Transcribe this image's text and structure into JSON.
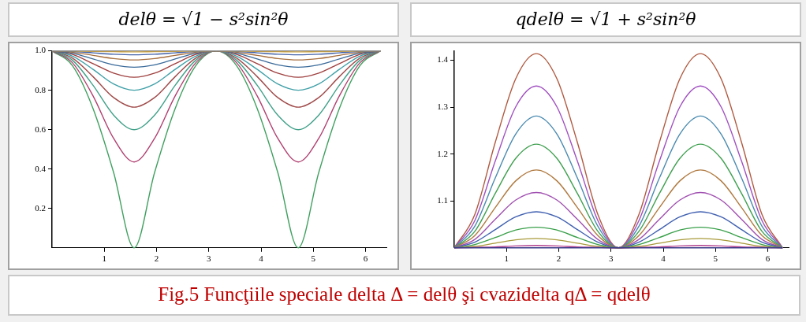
{
  "chart_data": [
    {
      "type": "line",
      "title": "delθ = √1 − s²sin²θ",
      "x": [
        0,
        0.393,
        0.785,
        1.178,
        1.571,
        1.963,
        2.356,
        2.749,
        3.142,
        3.534,
        3.927,
        4.32,
        4.712,
        5.105,
        5.498,
        5.89,
        6.283
      ],
      "xlim": [
        0,
        6.4
      ],
      "xticks": [
        1,
        2,
        3,
        4,
        5,
        6
      ],
      "ylim": [
        0,
        1.0
      ],
      "yticks": [
        0.2,
        0.4,
        0.6,
        0.8,
        {
          "value": 1,
          "label": "1.0"
        }
      ],
      "series": [
        {
          "color": "#8a8a8a",
          "values": [
            1,
            1,
            1,
            1,
            1,
            1,
            1,
            1,
            1,
            1,
            1,
            1,
            1,
            1,
            1,
            1,
            1
          ]
        },
        {
          "color": "#d0a030",
          "values": [
            1,
            0.999,
            0.997,
            0.996,
            0.995,
            0.996,
            0.997,
            0.999,
            1,
            0.999,
            0.997,
            0.996,
            0.995,
            0.996,
            0.997,
            0.999,
            1
          ]
        },
        {
          "color": "#4060a8",
          "values": [
            1,
            0.997,
            0.99,
            0.983,
            0.98,
            0.983,
            0.99,
            0.997,
            1,
            0.997,
            0.99,
            0.983,
            0.98,
            0.983,
            0.99,
            0.997,
            1
          ]
        },
        {
          "color": "#a87040",
          "values": [
            1,
            0.993,
            0.977,
            0.961,
            0.954,
            0.961,
            0.977,
            0.993,
            1,
            0.993,
            0.977,
            0.961,
            0.954,
            0.961,
            0.977,
            0.993,
            1
          ]
        },
        {
          "color": "#3a6a9a",
          "values": [
            1,
            0.988,
            0.959,
            0.929,
            0.917,
            0.929,
            0.959,
            0.988,
            1,
            0.988,
            0.959,
            0.929,
            0.917,
            0.929,
            0.959,
            0.988,
            1
          ]
        },
        {
          "color": "#a04040",
          "values": [
            1,
            0.982,
            0.935,
            0.887,
            0.866,
            0.887,
            0.935,
            0.982,
            1,
            0.982,
            0.935,
            0.887,
            0.866,
            0.887,
            0.935,
            0.982,
            1
          ]
        },
        {
          "color": "#40a0a8",
          "values": [
            1,
            0.973,
            0.906,
            0.832,
            0.8,
            0.832,
            0.906,
            0.973,
            1,
            0.973,
            0.906,
            0.832,
            0.8,
            0.832,
            0.906,
            0.973,
            1
          ]
        },
        {
          "color": "#a04a4a",
          "values": [
            1,
            0.963,
            0.869,
            0.763,
            0.714,
            0.763,
            0.869,
            0.963,
            1,
            0.963,
            0.869,
            0.763,
            0.714,
            0.763,
            0.869,
            0.963,
            1
          ]
        },
        {
          "color": "#40a088",
          "values": [
            1,
            0.952,
            0.825,
            0.674,
            0.6,
            0.674,
            0.825,
            0.952,
            1,
            0.952,
            0.825,
            0.674,
            0.6,
            0.674,
            0.825,
            0.952,
            1
          ]
        },
        {
          "color": "#b04070",
          "values": [
            1,
            0.939,
            0.771,
            0.556,
            0.436,
            0.556,
            0.771,
            0.939,
            1,
            0.939,
            0.771,
            0.556,
            0.436,
            0.556,
            0.771,
            0.939,
            1
          ]
        },
        {
          "color": "#40a060",
          "values": [
            1,
            0.924,
            0.707,
            0.383,
            0,
            0.383,
            0.707,
            0.924,
            1,
            0.924,
            0.707,
            0.383,
            0,
            0.383,
            0.707,
            0.924,
            1
          ]
        }
      ],
      "annotations": [
        "Fig.5 Funcţiile speciale delta Δ = delθ şi cvazidelta qΔ = qdelθ"
      ]
    },
    {
      "type": "line",
      "title": "qdelθ = √1 + s²sin²θ",
      "x": [
        0,
        0.393,
        0.785,
        1.178,
        1.571,
        1.963,
        2.356,
        2.749,
        3.142,
        3.534,
        3.927,
        4.32,
        4.712,
        5.105,
        5.498,
        5.89,
        6.283
      ],
      "xlim": [
        0,
        6.4
      ],
      "xticks": [
        1,
        2,
        3,
        4,
        5,
        6
      ],
      "ylim": [
        1,
        1.42
      ],
      "yticks": [
        1.1,
        1.2,
        1.3,
        1.4
      ],
      "series": [
        {
          "color": "#3b3b8a",
          "values": [
            1,
            1,
            1,
            1,
            1,
            1,
            1,
            1,
            1,
            1,
            1,
            1,
            1,
            1,
            1,
            1,
            1
          ]
        },
        {
          "color": "#b0408f",
          "values": [
            1,
            1.001,
            1.002,
            1.004,
            1.005,
            1.004,
            1.002,
            1.001,
            1,
            1.001,
            1.002,
            1.004,
            1.005,
            1.004,
            1.002,
            1.001,
            1
          ]
        },
        {
          "color": "#a89a3a",
          "values": [
            1,
            1.003,
            1.01,
            1.017,
            1.02,
            1.017,
            1.01,
            1.003,
            1,
            1.003,
            1.01,
            1.017,
            1.02,
            1.017,
            1.01,
            1.003,
            1
          ]
        },
        {
          "color": "#3aa04a",
          "values": [
            1,
            1.007,
            1.022,
            1.038,
            1.044,
            1.038,
            1.022,
            1.007,
            1,
            1.007,
            1.022,
            1.038,
            1.044,
            1.038,
            1.022,
            1.007,
            1
          ]
        },
        {
          "color": "#4060b0",
          "values": [
            1,
            1.012,
            1.039,
            1.066,
            1.077,
            1.066,
            1.039,
            1.012,
            1,
            1.012,
            1.039,
            1.066,
            1.077,
            1.066,
            1.039,
            1.012,
            1
          ]
        },
        {
          "color": "#a050b0",
          "values": [
            1,
            1.018,
            1.061,
            1.102,
            1.118,
            1.102,
            1.061,
            1.018,
            1,
            1.018,
            1.061,
            1.102,
            1.118,
            1.102,
            1.061,
            1.018,
            1
          ]
        },
        {
          "color": "#b07a40",
          "values": [
            1,
            1.026,
            1.086,
            1.143,
            1.166,
            1.143,
            1.086,
            1.026,
            1,
            1.026,
            1.086,
            1.143,
            1.166,
            1.143,
            1.086,
            1.026,
            1
          ]
        },
        {
          "color": "#40a050",
          "values": [
            1,
            1.035,
            1.116,
            1.191,
            1.221,
            1.191,
            1.116,
            1.035,
            1,
            1.035,
            1.116,
            1.191,
            1.221,
            1.191,
            1.116,
            1.035,
            1
          ]
        },
        {
          "color": "#4a8ab0",
          "values": [
            1,
            1.046,
            1.149,
            1.243,
            1.281,
            1.243,
            1.149,
            1.046,
            1,
            1.046,
            1.149,
            1.243,
            1.281,
            1.243,
            1.149,
            1.046,
            1
          ]
        },
        {
          "color": "#a050c0",
          "values": [
            1,
            1.058,
            1.185,
            1.301,
            1.345,
            1.301,
            1.185,
            1.058,
            1,
            1.058,
            1.185,
            1.301,
            1.345,
            1.301,
            1.185,
            1.058,
            1
          ]
        },
        {
          "color": "#b05a40",
          "values": [
            1,
            1.071,
            1.225,
            1.361,
            1.414,
            1.361,
            1.225,
            1.071,
            1,
            1.071,
            1.225,
            1.361,
            1.414,
            1.361,
            1.225,
            1.071,
            1
          ]
        }
      ]
    }
  ]
}
